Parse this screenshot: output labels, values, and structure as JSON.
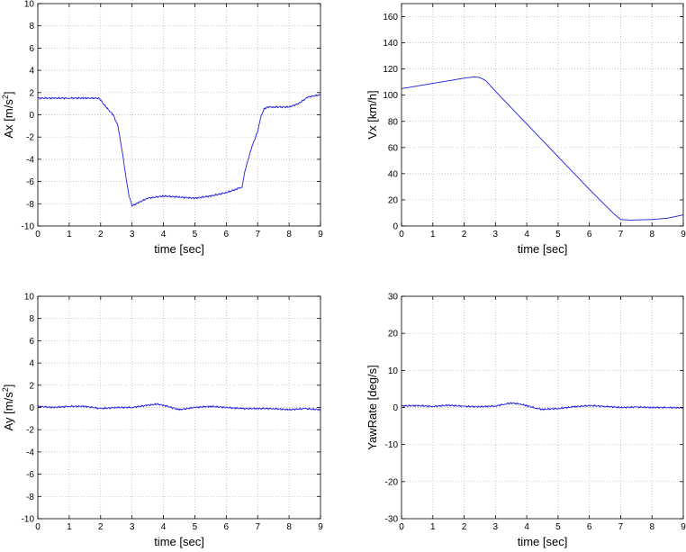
{
  "chart_data": [
    {
      "type": "line",
      "ylabel_main": "Ax [m/s",
      "ylabel_sup": "2",
      "ylabel_tail": "]",
      "xlabel": "time [sec]",
      "xlim": [
        0,
        9
      ],
      "ylim": [
        -10,
        10
      ],
      "xticks": [
        "0",
        "1",
        "2",
        "3",
        "4",
        "5",
        "6",
        "7",
        "8",
        "9"
      ],
      "yticks": [
        "-10",
        "-8",
        "-6",
        "-4",
        "-2",
        "0",
        "2",
        "4",
        "6",
        "8",
        "10"
      ],
      "series": [
        {
          "name": "Ax",
          "x": [
            0,
            0.5,
            1.0,
            1.5,
            1.95,
            2.2,
            2.4,
            2.55,
            2.7,
            2.8,
            2.9,
            3.0,
            3.2,
            3.5,
            4.0,
            4.5,
            5.0,
            5.5,
            6.0,
            6.3,
            6.5,
            6.6,
            6.8,
            7.0,
            7.1,
            7.2,
            7.3,
            7.5,
            8.0,
            8.3,
            8.6,
            9.0
          ],
          "y": [
            1.5,
            1.5,
            1.5,
            1.5,
            1.5,
            0.6,
            0.0,
            -1.0,
            -3.5,
            -5.5,
            -7.2,
            -8.2,
            -7.9,
            -7.5,
            -7.3,
            -7.4,
            -7.5,
            -7.3,
            -7.0,
            -6.7,
            -6.5,
            -5.0,
            -3.0,
            -1.5,
            -0.2,
            0.5,
            0.7,
            0.7,
            0.7,
            1.0,
            1.6,
            1.8
          ]
        }
      ]
    },
    {
      "type": "line",
      "ylabel": "Vx [km/h]",
      "xlabel": "time [sec]",
      "xlim": [
        0,
        9
      ],
      "ylim": [
        0,
        170
      ],
      "xticks": [
        "0",
        "1",
        "2",
        "3",
        "4",
        "5",
        "6",
        "7",
        "8",
        "9"
      ],
      "yticks": [
        "0",
        "20",
        "40",
        "60",
        "80",
        "100",
        "120",
        "140",
        "160"
      ],
      "series": [
        {
          "name": "Vx",
          "x": [
            0,
            1.0,
            2.0,
            2.3,
            2.5,
            2.7,
            3.0,
            4.0,
            5.0,
            6.0,
            6.5,
            6.8,
            7.0,
            7.3,
            8.0,
            8.5,
            9.0
          ],
          "y": [
            105,
            109,
            113,
            114,
            113.5,
            111,
            103,
            78,
            53,
            28,
            16,
            9,
            5,
            4.5,
            5,
            6,
            8.5
          ]
        }
      ]
    },
    {
      "type": "line",
      "ylabel_main": "Ay [m/s",
      "ylabel_sup": "2",
      "ylabel_tail": "]",
      "xlabel": "time [sec]",
      "xlim": [
        0,
        9
      ],
      "ylim": [
        -10,
        10
      ],
      "xticks": [
        "0",
        "1",
        "2",
        "3",
        "4",
        "5",
        "6",
        "7",
        "8",
        "9"
      ],
      "yticks": [
        "-10",
        "-8",
        "-6",
        "-4",
        "-2",
        "0",
        "2",
        "4",
        "6",
        "8",
        "10"
      ],
      "series": [
        {
          "name": "Ay",
          "x": [
            0,
            0.5,
            1.0,
            1.5,
            2.0,
            2.5,
            3.0,
            3.5,
            3.8,
            4.0,
            4.5,
            5.0,
            5.5,
            6.0,
            6.5,
            7.0,
            7.5,
            8.0,
            8.5,
            9.0
          ],
          "y": [
            0.1,
            0.0,
            0.1,
            0.1,
            -0.1,
            0.0,
            0.0,
            0.2,
            0.3,
            0.2,
            -0.2,
            0.0,
            0.1,
            0.0,
            -0.1,
            -0.1,
            -0.1,
            -0.2,
            -0.1,
            -0.2
          ]
        }
      ]
    },
    {
      "type": "line",
      "ylabel": "YawRate [deg/s]",
      "xlabel": "time [sec]",
      "xlim": [
        0,
        9
      ],
      "ylim": [
        -30,
        30
      ],
      "xticks": [
        "0",
        "1",
        "2",
        "3",
        "4",
        "5",
        "6",
        "7",
        "8",
        "9"
      ],
      "yticks": [
        "-30",
        "-20",
        "-10",
        "0",
        "10",
        "20",
        "30"
      ],
      "series": [
        {
          "name": "YawRate",
          "x": [
            0,
            0.5,
            1.0,
            1.5,
            2.0,
            2.5,
            3.0,
            3.3,
            3.5,
            3.8,
            4.0,
            4.3,
            4.5,
            5.0,
            5.5,
            6.0,
            6.5,
            7.0,
            7.5,
            8.0,
            8.5,
            9.0
          ],
          "y": [
            0.4,
            0.5,
            0.3,
            0.6,
            0.3,
            0.2,
            0.4,
            0.9,
            1.2,
            0.9,
            0.5,
            -0.2,
            -0.5,
            -0.3,
            0.2,
            0.5,
            0.3,
            0.0,
            0.1,
            0.0,
            0.0,
            -0.1
          ]
        }
      ]
    }
  ]
}
